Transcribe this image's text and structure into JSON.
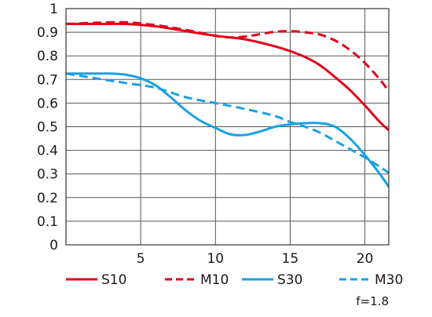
{
  "chart_data": {
    "type": "line",
    "title": "",
    "xlabel": "",
    "ylabel": "",
    "xlim": [
      0,
      21.6
    ],
    "ylim": [
      0,
      1
    ],
    "x_ticks": [
      5,
      10,
      15,
      20
    ],
    "y_ticks": [
      0,
      0.1,
      0.2,
      0.3,
      0.4,
      0.5,
      0.6,
      0.7,
      0.8,
      0.9,
      1
    ],
    "x_tick_labels": [
      "5",
      "10",
      "15",
      "20"
    ],
    "y_tick_labels": [
      "0",
      "0.1",
      "0.2",
      "0.3",
      "0.4",
      "0.5",
      "0.6",
      "0.7",
      "0.8",
      "0.9",
      "1"
    ],
    "grid": true,
    "legend_position": "bottom",
    "annotation": "f=1.8",
    "series": [
      {
        "name": "S10",
        "color": "#e2001a",
        "dash": "solid",
        "points": [
          [
            0,
            0.935
          ],
          [
            2,
            0.935
          ],
          [
            4,
            0.935
          ],
          [
            6,
            0.925
          ],
          [
            8,
            0.905
          ],
          [
            10,
            0.885
          ],
          [
            12,
            0.87
          ],
          [
            14,
            0.84
          ],
          [
            15,
            0.82
          ],
          [
            16,
            0.795
          ],
          [
            17,
            0.76
          ],
          [
            18,
            0.71
          ],
          [
            19,
            0.655
          ],
          [
            20,
            0.59
          ],
          [
            21,
            0.52
          ],
          [
            21.6,
            0.485
          ]
        ]
      },
      {
        "name": "M10",
        "color": "#e2001a",
        "dash": "dashed",
        "points": [
          [
            0,
            0.935
          ],
          [
            2,
            0.94
          ],
          [
            4,
            0.942
          ],
          [
            6,
            0.93
          ],
          [
            8,
            0.91
          ],
          [
            10,
            0.885
          ],
          [
            11,
            0.878
          ],
          [
            12,
            0.882
          ],
          [
            13,
            0.892
          ],
          [
            14,
            0.902
          ],
          [
            15,
            0.905
          ],
          [
            16,
            0.9
          ],
          [
            17,
            0.89
          ],
          [
            18,
            0.865
          ],
          [
            19,
            0.825
          ],
          [
            20,
            0.77
          ],
          [
            21,
            0.7
          ],
          [
            21.6,
            0.65
          ]
        ]
      },
      {
        "name": "S30",
        "color": "#1ba1e2",
        "dash": "solid",
        "points": [
          [
            0,
            0.725
          ],
          [
            2,
            0.725
          ],
          [
            3,
            0.725
          ],
          [
            4,
            0.72
          ],
          [
            5,
            0.705
          ],
          [
            6,
            0.675
          ],
          [
            7,
            0.625
          ],
          [
            8,
            0.57
          ],
          [
            9,
            0.525
          ],
          [
            10,
            0.495
          ],
          [
            11,
            0.468
          ],
          [
            12,
            0.465
          ],
          [
            13,
            0.48
          ],
          [
            14,
            0.5
          ],
          [
            15,
            0.51
          ],
          [
            16,
            0.515
          ],
          [
            17,
            0.515
          ],
          [
            18,
            0.5
          ],
          [
            19,
            0.45
          ],
          [
            20,
            0.38
          ],
          [
            21,
            0.3
          ],
          [
            21.6,
            0.245
          ]
        ]
      },
      {
        "name": "M30",
        "color": "#1ba1e2",
        "dash": "dashed",
        "points": [
          [
            0,
            0.725
          ],
          [
            2,
            0.705
          ],
          [
            4,
            0.685
          ],
          [
            6,
            0.665
          ],
          [
            8,
            0.625
          ],
          [
            10,
            0.6
          ],
          [
            12,
            0.575
          ],
          [
            14,
            0.545
          ],
          [
            15,
            0.52
          ],
          [
            16,
            0.5
          ],
          [
            17,
            0.475
          ],
          [
            18,
            0.44
          ],
          [
            19,
            0.405
          ],
          [
            20,
            0.37
          ],
          [
            21,
            0.33
          ],
          [
            21.6,
            0.305
          ]
        ]
      }
    ]
  }
}
